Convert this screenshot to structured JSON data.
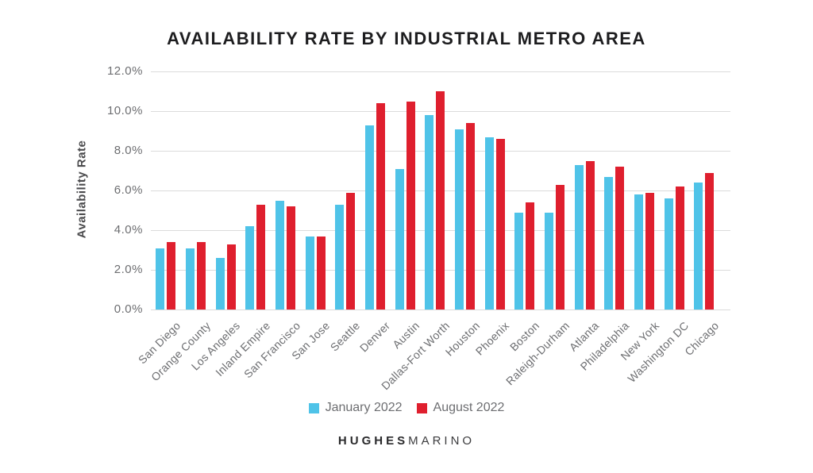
{
  "title": "AVAILABILITY RATE BY INDUSTRIAL METRO AREA",
  "y_axis_title": "Availability Rate",
  "logo": {
    "bold": "HUGHES",
    "light": "MARINO"
  },
  "chart_data": {
    "type": "bar",
    "title": "AVAILABILITY RATE BY INDUSTRIAL METRO AREA",
    "xlabel": "",
    "ylabel": "Availability Rate",
    "ylim": [
      0,
      12
    ],
    "ytick_step": 2,
    "ytick_labels_bottom_to_top": [
      "0.0%",
      "2.0%",
      "4.0%",
      "6.0%",
      "8.0%",
      "10.0%",
      "12.0%"
    ],
    "grid": true,
    "legend_position": "bottom",
    "categories": [
      "San Diego",
      "Orange County",
      "Los Angeles",
      "Inland Empire",
      "San Francisco",
      "San Jose",
      "Seattle",
      "Denver",
      "Austin",
      "Dallas-Fort Worth",
      "Houston",
      "Phoenix",
      "Boston",
      "Raleigh-Durham",
      "Atlanta",
      "Philadelphia",
      "New York",
      "Washington DC",
      "Chicago"
    ],
    "series": [
      {
        "name": "January 2022",
        "color": "#4FC3E8",
        "values": [
          3.1,
          3.1,
          2.6,
          4.2,
          5.5,
          3.7,
          5.3,
          9.3,
          7.1,
          9.8,
          9.1,
          8.7,
          4.9,
          4.9,
          7.3,
          6.7,
          5.8,
          5.6,
          6.4
        ]
      },
      {
        "name": "August 2022",
        "color": "#DF1F2E",
        "values": [
          3.4,
          3.4,
          3.3,
          5.3,
          5.2,
          3.7,
          5.9,
          10.4,
          10.5,
          11.0,
          9.4,
          8.6,
          5.4,
          6.3,
          7.5,
          7.2,
          5.9,
          6.2,
          6.9
        ]
      }
    ]
  }
}
